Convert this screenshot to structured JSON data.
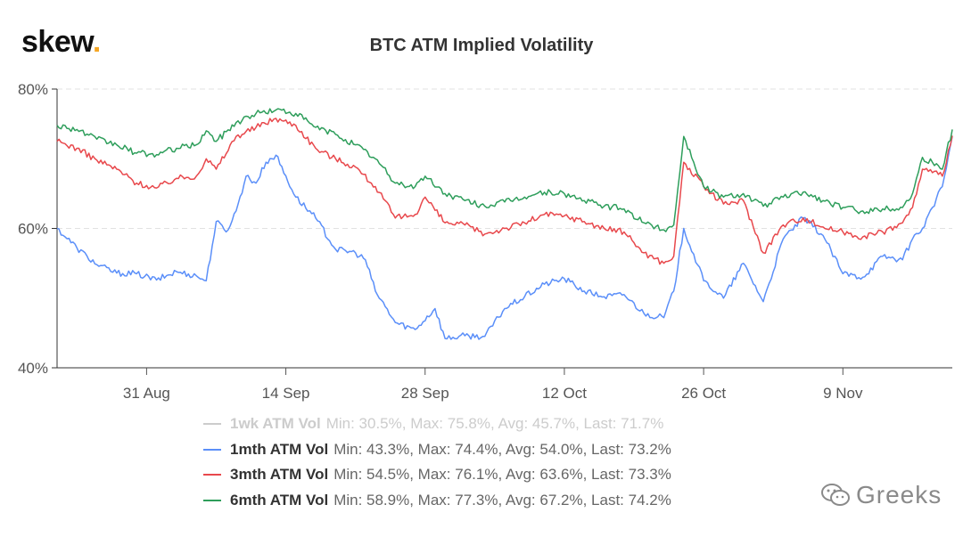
{
  "brand": {
    "name": "skew",
    "dot": "."
  },
  "watermark": {
    "text": "Greeks",
    "icon": "wechat-icon"
  },
  "chart_data": {
    "type": "line",
    "title": "BTC ATM Implied Volatility",
    "xlabel": "",
    "ylabel": "",
    "ylim": [
      40,
      80
    ],
    "yticks": [
      40,
      60,
      80
    ],
    "ytick_labels": [
      "40%",
      "60%",
      "80%"
    ],
    "xlim": [
      "2020-08-22",
      "2020-11-20"
    ],
    "xticks": [
      "2020-08-31",
      "2020-09-14",
      "2020-09-28",
      "2020-10-12",
      "2020-10-26",
      "2020-11-09"
    ],
    "xtick_labels": [
      "31 Aug",
      "14 Sep",
      "28 Sep",
      "12 Oct",
      "26 Oct",
      "9 Nov"
    ],
    "grid": "horizontal dashed",
    "legend_position": "bottom",
    "series": [
      {
        "name": "1wk ATM Vol",
        "stats": "Min: 30.5%, Max: 75.8%, Avg: 45.7%, Last: 71.7%",
        "color": "#cccccc",
        "visible": false,
        "points": []
      },
      {
        "name": "1mth ATM Vol",
        "stats": "Min: 43.3%, Max: 74.4%, Avg: 54.0%, Last: 73.2%",
        "color": "#5b8ff9",
        "visible": true,
        "points": [
          [
            "2020-08-22",
            60.0
          ],
          [
            "2020-08-24",
            57.2
          ],
          [
            "2020-08-26",
            54.8
          ],
          [
            "2020-08-28",
            53.6
          ],
          [
            "2020-08-30",
            53.5
          ],
          [
            "2020-09-01",
            52.6
          ],
          [
            "2020-09-03",
            53.8
          ],
          [
            "2020-09-05",
            53.2
          ],
          [
            "2020-09-06",
            52.5
          ],
          [
            "2020-09-07",
            61.0
          ],
          [
            "2020-09-08",
            59.5
          ],
          [
            "2020-09-09",
            62.5
          ],
          [
            "2020-09-10",
            67.5
          ],
          [
            "2020-09-11",
            66.5
          ],
          [
            "2020-09-12",
            69.5
          ],
          [
            "2020-09-13",
            70.5
          ],
          [
            "2020-09-15",
            64.5
          ],
          [
            "2020-09-17",
            61.5
          ],
          [
            "2020-09-19",
            57.0
          ],
          [
            "2020-09-21",
            56.5
          ],
          [
            "2020-09-22",
            55.5
          ],
          [
            "2020-09-23",
            51.0
          ],
          [
            "2020-09-25",
            46.5
          ],
          [
            "2020-09-27",
            45.5
          ],
          [
            "2020-09-29",
            48.5
          ],
          [
            "2020-09-30",
            44.2
          ],
          [
            "2020-10-02",
            44.6
          ],
          [
            "2020-10-04",
            44.5
          ],
          [
            "2020-10-06",
            48.5
          ],
          [
            "2020-10-08",
            50.2
          ],
          [
            "2020-10-10",
            52.0
          ],
          [
            "2020-10-12",
            52.8
          ],
          [
            "2020-10-14",
            51.0
          ],
          [
            "2020-10-16",
            50.2
          ],
          [
            "2020-10-18",
            50.5
          ],
          [
            "2020-10-20",
            47.8
          ],
          [
            "2020-10-22",
            47.2
          ],
          [
            "2020-10-23",
            51.0
          ],
          [
            "2020-10-24",
            60.0
          ],
          [
            "2020-10-26",
            52.5
          ],
          [
            "2020-10-28",
            50.0
          ],
          [
            "2020-10-30",
            55.0
          ],
          [
            "2020-11-01",
            49.5
          ],
          [
            "2020-11-03",
            58.5
          ],
          [
            "2020-11-05",
            61.5
          ],
          [
            "2020-11-07",
            59.0
          ],
          [
            "2020-11-09",
            53.5
          ],
          [
            "2020-11-11",
            53.0
          ],
          [
            "2020-11-13",
            56.0
          ],
          [
            "2020-11-15",
            55.5
          ],
          [
            "2020-11-16",
            58.5
          ],
          [
            "2020-11-17",
            60.0
          ],
          [
            "2020-11-18",
            63.0
          ],
          [
            "2020-11-19",
            66.0
          ],
          [
            "2020-11-20",
            73.2
          ]
        ]
      },
      {
        "name": "3mth ATM Vol",
        "stats": "Min: 54.5%, Max: 76.1%, Avg: 63.6%, Last: 73.3%",
        "color": "#e8484c",
        "visible": true,
        "points": [
          [
            "2020-08-22",
            72.5
          ],
          [
            "2020-08-24",
            71.5
          ],
          [
            "2020-08-26",
            69.8
          ],
          [
            "2020-08-28",
            68.5
          ],
          [
            "2020-08-30",
            66.5
          ],
          [
            "2020-09-01",
            65.8
          ],
          [
            "2020-09-03",
            67.2
          ],
          [
            "2020-09-05",
            67.5
          ],
          [
            "2020-09-06",
            70.0
          ],
          [
            "2020-09-07",
            68.5
          ],
          [
            "2020-09-09",
            73.2
          ],
          [
            "2020-09-11",
            74.5
          ],
          [
            "2020-09-13",
            75.8
          ],
          [
            "2020-09-15",
            74.8
          ],
          [
            "2020-09-17",
            71.5
          ],
          [
            "2020-09-19",
            70.0
          ],
          [
            "2020-09-21",
            68.8
          ],
          [
            "2020-09-23",
            66.0
          ],
          [
            "2020-09-25",
            61.5
          ],
          [
            "2020-09-27",
            62.0
          ],
          [
            "2020-09-28",
            64.5
          ],
          [
            "2020-09-30",
            60.8
          ],
          [
            "2020-10-02",
            60.5
          ],
          [
            "2020-10-04",
            59.2
          ],
          [
            "2020-10-06",
            60.0
          ],
          [
            "2020-10-08",
            60.8
          ],
          [
            "2020-10-10",
            62.0
          ],
          [
            "2020-10-12",
            61.8
          ],
          [
            "2020-10-14",
            61.0
          ],
          [
            "2020-10-16",
            60.0
          ],
          [
            "2020-10-18",
            59.5
          ],
          [
            "2020-10-20",
            56.5
          ],
          [
            "2020-10-22",
            55.0
          ],
          [
            "2020-10-23",
            56.0
          ],
          [
            "2020-10-24",
            69.5
          ],
          [
            "2020-10-26",
            66.0
          ],
          [
            "2020-10-28",
            63.5
          ],
          [
            "2020-10-30",
            64.0
          ],
          [
            "2020-11-01",
            56.5
          ],
          [
            "2020-11-03",
            60.5
          ],
          [
            "2020-11-05",
            61.5
          ],
          [
            "2020-11-07",
            60.2
          ],
          [
            "2020-11-09",
            59.5
          ],
          [
            "2020-11-11",
            58.8
          ],
          [
            "2020-11-13",
            59.5
          ],
          [
            "2020-11-15",
            60.8
          ],
          [
            "2020-11-16",
            63.0
          ],
          [
            "2020-11-17",
            68.5
          ],
          [
            "2020-11-18",
            68.0
          ],
          [
            "2020-11-19",
            67.5
          ],
          [
            "2020-11-20",
            73.3
          ]
        ]
      },
      {
        "name": "6mth ATM Vol",
        "stats": "Min: 58.9%, Max: 77.3%, Avg: 67.2%, Last: 74.2%",
        "color": "#2e9e5b",
        "visible": true,
        "points": [
          [
            "2020-08-22",
            74.8
          ],
          [
            "2020-08-24",
            74.2
          ],
          [
            "2020-08-26",
            72.8
          ],
          [
            "2020-08-28",
            72.0
          ],
          [
            "2020-08-30",
            70.8
          ],
          [
            "2020-09-01",
            70.6
          ],
          [
            "2020-09-03",
            71.5
          ],
          [
            "2020-09-05",
            72.0
          ],
          [
            "2020-09-06",
            74.0
          ],
          [
            "2020-09-07",
            72.5
          ],
          [
            "2020-09-09",
            75.2
          ],
          [
            "2020-09-11",
            76.5
          ],
          [
            "2020-09-13",
            77.0
          ],
          [
            "2020-09-15",
            76.5
          ],
          [
            "2020-09-17",
            74.5
          ],
          [
            "2020-09-19",
            73.5
          ],
          [
            "2020-09-21",
            72.0
          ],
          [
            "2020-09-23",
            70.0
          ],
          [
            "2020-09-25",
            66.5
          ],
          [
            "2020-09-27",
            66.0
          ],
          [
            "2020-09-28",
            67.5
          ],
          [
            "2020-09-30",
            65.0
          ],
          [
            "2020-10-02",
            64.0
          ],
          [
            "2020-10-04",
            63.2
          ],
          [
            "2020-10-06",
            63.8
          ],
          [
            "2020-10-08",
            64.5
          ],
          [
            "2020-10-10",
            65.2
          ],
          [
            "2020-10-12",
            65.0
          ],
          [
            "2020-10-14",
            64.0
          ],
          [
            "2020-10-16",
            63.2
          ],
          [
            "2020-10-18",
            62.8
          ],
          [
            "2020-10-20",
            60.8
          ],
          [
            "2020-10-22",
            59.8
          ],
          [
            "2020-10-23",
            60.5
          ],
          [
            "2020-10-24",
            73.2
          ],
          [
            "2020-10-26",
            66.0
          ],
          [
            "2020-10-28",
            64.5
          ],
          [
            "2020-10-30",
            65.0
          ],
          [
            "2020-11-01",
            63.2
          ],
          [
            "2020-11-03",
            64.5
          ],
          [
            "2020-11-05",
            65.2
          ],
          [
            "2020-11-07",
            64.0
          ],
          [
            "2020-11-09",
            63.0
          ],
          [
            "2020-11-11",
            62.5
          ],
          [
            "2020-11-13",
            62.8
          ],
          [
            "2020-11-15",
            63.0
          ],
          [
            "2020-11-16",
            65.0
          ],
          [
            "2020-11-17",
            70.2
          ],
          [
            "2020-11-18",
            69.5
          ],
          [
            "2020-11-19",
            68.5
          ],
          [
            "2020-11-20",
            74.2
          ]
        ]
      }
    ]
  }
}
